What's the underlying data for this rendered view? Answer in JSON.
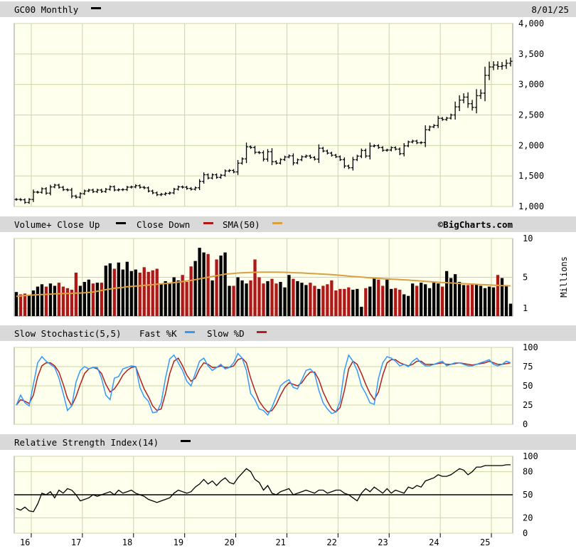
{
  "colors": {
    "page_bg": "#ffffff",
    "header_bg": "#d9d9d9",
    "plot_bg": "#ffffee",
    "grid": "#c8d8a0",
    "price_bar": "#000000",
    "volume_up": "#000000",
    "volume_down": "#b01818",
    "sma": "#d8a040",
    "fast_k": "#3399ff",
    "slow_d": "#b02020",
    "rsi": "#000000"
  },
  "header": {
    "symbol_label": "GC00 Monthly",
    "date": "8/01/25",
    "volume_label": "Volume+ Close Up",
    "close_down_label": "Close Down",
    "sma_label": "SMA(50)",
    "brand": "©BigCharts.com",
    "stoch_label": "Slow Stochastic(5,5)",
    "fast_label": "Fast %K",
    "slow_label": "Slow %D",
    "rsi_label": "Relative Strength Index(14)"
  },
  "x_axis": {
    "tick_labels": [
      "16",
      "17",
      "18",
      "19",
      "20",
      "21",
      "22",
      "23",
      "24",
      "25"
    ]
  },
  "chart_data": [
    {
      "type": "ohlc",
      "title": "GC00 Monthly",
      "y_ticks": [
        "4,000",
        "3,500",
        "3,000",
        "2,500",
        "2,000",
        "1,500",
        "1,000"
      ],
      "ylim": [
        1000,
        4000
      ],
      "x_start": "2015-09",
      "close": [
        1115,
        1110,
        1065,
        1115,
        1235,
        1232,
        1290,
        1218,
        1320,
        1350,
        1314,
        1275,
        1270,
        1170,
        1152,
        1210,
        1254,
        1269,
        1242,
        1269,
        1245,
        1281,
        1323,
        1270,
        1275,
        1276,
        1316,
        1320,
        1341,
        1314,
        1305,
        1252,
        1223,
        1192,
        1200,
        1214,
        1222,
        1283,
        1321,
        1316,
        1295,
        1283,
        1306,
        1411,
        1520,
        1466,
        1520,
        1476,
        1512,
        1582,
        1590,
        1566,
        1710,
        1780,
        1978,
        1966,
        1887,
        1881,
        1776,
        1898,
        1734,
        1710,
        1768,
        1811,
        1830,
        1714,
        1765,
        1815,
        1828,
        1803,
        1776,
        1955,
        1909,
        1875,
        1840,
        1815,
        1767,
        1663,
        1635,
        1766,
        1825,
        1917,
        1827,
        1990,
        1997,
        1966,
        1920,
        1925,
        1964,
        1940,
        1866,
        1994,
        2057,
        2072,
        2044,
        2047,
        2257,
        2305,
        2327,
        2445,
        2426,
        2448,
        2500,
        2633,
        2744,
        2793,
        2685,
        2624,
        2816,
        2858,
        3150,
        3287,
        3319,
        3295,
        3307,
        3348,
        3380
      ]
    },
    {
      "type": "bar",
      "title": "Volume+",
      "y_ticks": [
        "10",
        "5",
        "1"
      ],
      "y_axis_title": "Millions",
      "ylim": [
        0,
        10
      ],
      "x_start": "2015-09",
      "series": [
        {
          "name": "Close Up",
          "color": "#000000"
        },
        {
          "name": "Close Down",
          "color": "#b01818"
        }
      ],
      "sma_name": "SMA(50)",
      "values": [
        3.1,
        2.8,
        2.9,
        2.7,
        3.3,
        3.8,
        4.1,
        3.8,
        4.2,
        3.9,
        4.3,
        3.8,
        3.6,
        3.4,
        5.6,
        3.9,
        4.4,
        4.7,
        4.2,
        4.3,
        4.3,
        6.5,
        6.8,
        6.1,
        6.9,
        6.0,
        7.0,
        5.8,
        6.0,
        5.6,
        6.3,
        5.7,
        5.9,
        6.1,
        4.2,
        4.5,
        4.2,
        5.0,
        4.6,
        5.3,
        4.4,
        6.4,
        7.1,
        8.8,
        8.2,
        8.0,
        4.6,
        7.3,
        7.8,
        8.2,
        3.9,
        3.9,
        5.0,
        4.6,
        4.2,
        4.6,
        7.3,
        5.0,
        4.2,
        4.5,
        4.8,
        4.2,
        4.4,
        3.7,
        5.3,
        4.8,
        4.5,
        4.3,
        4.0,
        4.3,
        3.9,
        3.5,
        3.9,
        4.1,
        4.6,
        3.3,
        3.5,
        3.5,
        3.7,
        3.4,
        3.5,
        1.2,
        3.6,
        3.8,
        4.9,
        4.7,
        3.9,
        4.7,
        3.5,
        3.6,
        3.4,
        2.8,
        2.6,
        4.2,
        3.9,
        4.3,
        4.1,
        3.6,
        4.3,
        4.2,
        3.8,
        5.8,
        4.9,
        5.4,
        4.4,
        4.0,
        4.0,
        4.2,
        4.1,
        3.9,
        3.6,
        3.8,
        3.7,
        5.3,
        4.9,
        4.0,
        1.6
      ],
      "up": [
        1,
        0,
        0,
        1,
        1,
        1,
        1,
        0,
        1,
        1,
        0,
        0,
        0,
        0,
        0,
        1,
        1,
        1,
        0,
        1,
        0,
        1,
        1,
        0,
        1,
        1,
        1,
        1,
        1,
        0,
        0,
        0,
        0,
        0,
        1,
        1,
        1,
        1,
        1,
        0,
        0,
        0,
        1,
        1,
        1,
        0,
        1,
        0,
        1,
        1,
        1,
        0,
        1,
        1,
        1,
        0,
        0,
        0,
        0,
        1,
        0,
        0,
        1,
        1,
        1,
        0,
        1,
        1,
        1,
        0,
        0,
        1,
        0,
        0,
        0,
        0,
        0,
        0,
        0,
        1,
        1,
        1,
        0,
        1,
        1,
        0,
        0,
        1,
        1,
        0,
        0,
        1,
        1,
        1,
        0,
        1,
        1,
        1,
        1,
        1,
        0,
        1,
        1,
        1,
        1,
        1,
        0,
        0,
        1,
        1,
        1,
        1,
        1,
        0,
        1,
        1,
        1
      ],
      "sma": [
        2.55,
        2.6,
        2.65,
        2.7,
        2.72,
        2.75,
        2.78,
        2.8,
        2.83,
        2.86,
        2.88,
        2.9,
        2.92,
        2.93,
        2.95,
        2.97,
        3.0,
        3.05,
        3.1,
        3.2,
        3.3,
        3.4,
        3.5,
        3.58,
        3.65,
        3.7,
        3.78,
        3.82,
        3.86,
        3.9,
        3.95,
        4.0,
        4.05,
        4.1,
        4.15,
        4.2,
        4.25,
        4.3,
        4.38,
        4.45,
        4.52,
        4.6,
        4.7,
        4.8,
        4.9,
        5.0,
        5.1,
        5.2,
        5.3,
        5.4,
        5.45,
        5.5,
        5.55,
        5.58,
        5.6,
        5.62,
        5.64,
        5.65,
        5.66,
        5.66,
        5.66,
        5.66,
        5.65,
        5.64,
        5.62,
        5.6,
        5.58,
        5.56,
        5.53,
        5.5,
        5.47,
        5.44,
        5.41,
        5.38,
        5.34,
        5.3,
        5.25,
        5.2,
        5.15,
        5.1,
        5.06,
        5.02,
        4.98,
        4.94,
        4.9,
        4.86,
        4.82,
        4.79,
        4.76,
        4.73,
        4.7,
        4.67,
        4.64,
        4.6,
        4.56,
        4.52,
        4.48,
        4.44,
        4.4,
        4.36,
        4.32,
        4.3,
        4.27,
        4.24,
        4.21,
        4.18,
        4.15,
        4.12,
        4.09,
        4.06,
        4.04,
        4.01,
        3.98,
        3.95,
        3.93,
        3.91,
        3.9
      ]
    },
    {
      "type": "line",
      "title": "Slow Stochastic(5,5)",
      "y_ticks": [
        "100",
        "75",
        "50",
        "25",
        "0"
      ],
      "ylim": [
        0,
        100
      ],
      "x_start": "2015-09",
      "series": [
        {
          "name": "Fast %K",
          "color": "#3399ff",
          "values": [
            25,
            38,
            28,
            24,
            52,
            80,
            88,
            82,
            78,
            74,
            60,
            40,
            18,
            24,
            55,
            70,
            75,
            72,
            74,
            74,
            60,
            38,
            32,
            60,
            62,
            72,
            74,
            76,
            75,
            48,
            36,
            30,
            15,
            16,
            28,
            60,
            85,
            90,
            80,
            70,
            56,
            50,
            66,
            82,
            86,
            76,
            70,
            74,
            78,
            72,
            74,
            80,
            92,
            86,
            70,
            40,
            32,
            20,
            18,
            12,
            22,
            36,
            50,
            55,
            58,
            48,
            46,
            58,
            70,
            72,
            66,
            44,
            28,
            20,
            14,
            16,
            30,
            70,
            90,
            82,
            70,
            50,
            40,
            28,
            26,
            60,
            80,
            88,
            86,
            82,
            76,
            78,
            75,
            82,
            86,
            80,
            76,
            76,
            78,
            80,
            82,
            76,
            78,
            80,
            80,
            78,
            76,
            76,
            78,
            80,
            82,
            84,
            78,
            76,
            78,
            82,
            80
          ]
        },
        {
          "name": "Slow %D",
          "color": "#b02020",
          "values": [
            25,
            32,
            30,
            27,
            38,
            62,
            76,
            80,
            80,
            76,
            68,
            52,
            34,
            24,
            36,
            52,
            66,
            72,
            74,
            72,
            66,
            52,
            42,
            46,
            54,
            64,
            70,
            74,
            75,
            60,
            46,
            36,
            24,
            18,
            20,
            40,
            66,
            82,
            86,
            76,
            64,
            56,
            60,
            72,
            80,
            78,
            74,
            74,
            76,
            74,
            74,
            76,
            84,
            86,
            80,
            60,
            44,
            30,
            22,
            16,
            18,
            26,
            38,
            48,
            54,
            52,
            50,
            54,
            62,
            68,
            68,
            58,
            42,
            30,
            20,
            16,
            22,
            44,
            72,
            82,
            78,
            66,
            52,
            40,
            32,
            42,
            64,
            80,
            84,
            84,
            80,
            78,
            76,
            78,
            82,
            82,
            78,
            78,
            78,
            79,
            80,
            78,
            78,
            79,
            80,
            79,
            78,
            77,
            78,
            79,
            80,
            82,
            80,
            78,
            78,
            79,
            80
          ]
        }
      ]
    },
    {
      "type": "line",
      "title": "Relative Strength Index(14)",
      "y_ticks": [
        "100",
        "80",
        "50",
        "20",
        "0"
      ],
      "ylim": [
        0,
        100
      ],
      "reference_line": 50,
      "x_start": "2015-09",
      "series": [
        {
          "name": "RSI(14)",
          "color": "#000000",
          "values": [
            32,
            30,
            34,
            29,
            28,
            38,
            52,
            50,
            54,
            46,
            56,
            52,
            58,
            56,
            50,
            42,
            44,
            46,
            50,
            48,
            50,
            52,
            54,
            50,
            56,
            52,
            54,
            56,
            52,
            50,
            48,
            44,
            42,
            40,
            42,
            44,
            46,
            52,
            56,
            54,
            52,
            54,
            60,
            64,
            70,
            64,
            68,
            62,
            68,
            72,
            66,
            64,
            72,
            78,
            84,
            80,
            70,
            66,
            56,
            62,
            52,
            50,
            54,
            56,
            58,
            50,
            52,
            54,
            56,
            54,
            52,
            56,
            56,
            52,
            54,
            56,
            56,
            52,
            50,
            46,
            42,
            52,
            58,
            54,
            60,
            56,
            52,
            58,
            52,
            56,
            54,
            52,
            60,
            58,
            62,
            60,
            68,
            70,
            72,
            76,
            74,
            74,
            76,
            80,
            84,
            82,
            76,
            80,
            86,
            86,
            88,
            88,
            88,
            88,
            88,
            89,
            89
          ]
        }
      ]
    }
  ]
}
